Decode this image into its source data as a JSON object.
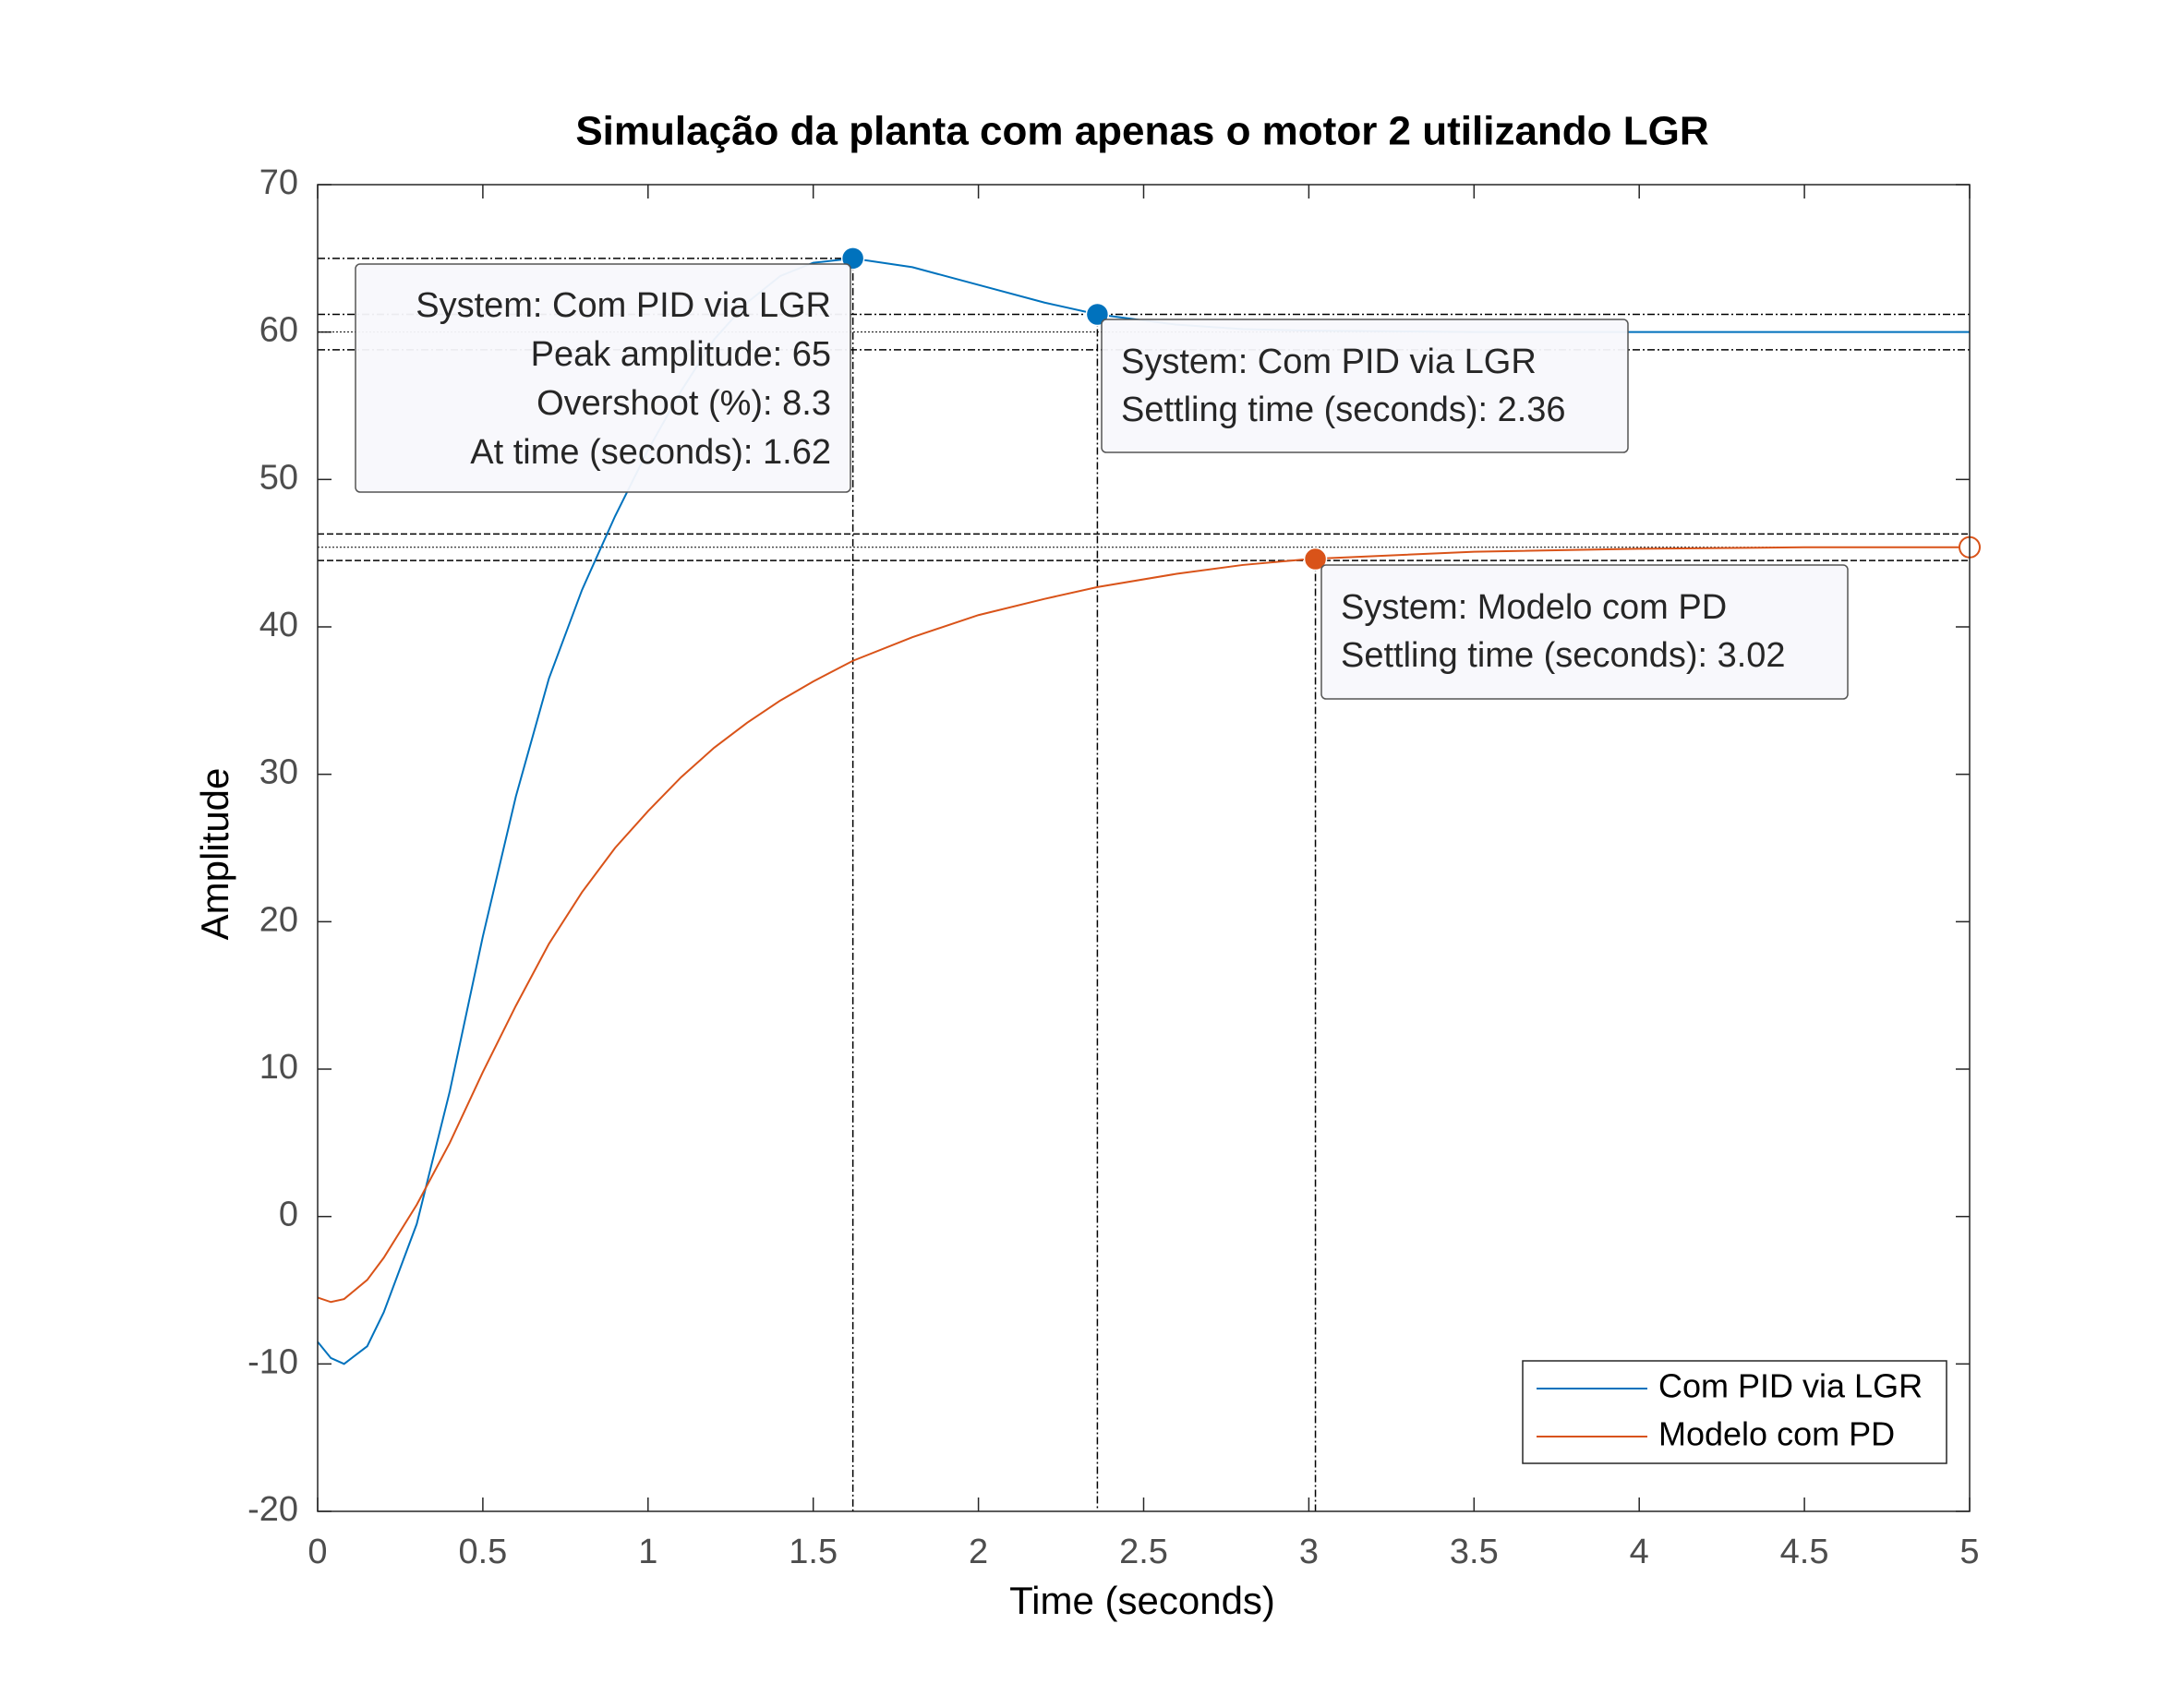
{
  "chart_data": {
    "type": "line",
    "title": "Simulação da planta com apenas o motor 2 utilizando LGR",
    "xlabel": "Time (seconds)",
    "ylabel": "Amplitude",
    "xlim": [
      0,
      5
    ],
    "ylim": [
      -20,
      70
    ],
    "xticks": [
      0,
      0.5,
      1,
      1.5,
      2,
      2.5,
      3,
      3.5,
      4,
      4.5,
      5
    ],
    "yticks": [
      -20,
      -10,
      0,
      10,
      20,
      30,
      40,
      50,
      60,
      70
    ],
    "grid": false,
    "legend": "lower right",
    "x": [
      0,
      0.04,
      0.08,
      0.15,
      0.2,
      0.3,
      0.4,
      0.5,
      0.6,
      0.7,
      0.8,
      0.9,
      1.0,
      1.1,
      1.2,
      1.3,
      1.4,
      1.5,
      1.62,
      1.8,
      2.0,
      2.2,
      2.36,
      2.6,
      2.8,
      3.0,
      3.5,
      4.0,
      4.5,
      5.0
    ],
    "series": [
      {
        "name": "Com PID via LGR",
        "color": "#0072bd",
        "values": [
          -8.5,
          -9.6,
          -10,
          -8.8,
          -6.5,
          -0.5,
          8.5,
          19,
          28.5,
          36.5,
          42.5,
          47.5,
          52,
          56,
          59.5,
          62,
          63.8,
          64.7,
          65,
          64.4,
          63.2,
          62,
          61.2,
          60.5,
          60.2,
          60.1,
          60,
          60,
          60,
          60
        ]
      },
      {
        "name": "Modelo com PD",
        "color": "#d95319",
        "values": [
          -5.5,
          -5.8,
          -5.6,
          -4.3,
          -2.8,
          0.8,
          5,
          9.8,
          14.3,
          18.5,
          22,
          25,
          27.5,
          29.8,
          31.8,
          33.5,
          35,
          36.3,
          37.7,
          39.3,
          40.8,
          41.9,
          42.7,
          43.6,
          44.2,
          44.6,
          45.1,
          45.3,
          45.4,
          45.4
        ]
      }
    ],
    "settling_bands": [
      [
        58.8,
        60,
        61.2
      ],
      [
        44.5,
        45.4,
        46.3
      ]
    ],
    "final_value_marker": {
      "series": 1,
      "x": 5,
      "y": 45.4
    },
    "datatips": [
      {
        "series": 0,
        "x": 1.62,
        "y": 65,
        "guide": true,
        "lines": [
          "System: Com PID via LGR",
          "Peak amplitude: 65",
          "Overshoot (%): 8.3",
          "At time (seconds): 1.62"
        ]
      },
      {
        "series": 0,
        "x": 2.36,
        "y": 61.2,
        "lines": [
          "System: Com PID via LGR",
          "Settling time (seconds): 2.36"
        ]
      },
      {
        "series": 1,
        "x": 3.02,
        "y": 44.6,
        "lines": [
          "System: Modelo com PD",
          "Settling time (seconds): 3.02"
        ]
      }
    ]
  }
}
